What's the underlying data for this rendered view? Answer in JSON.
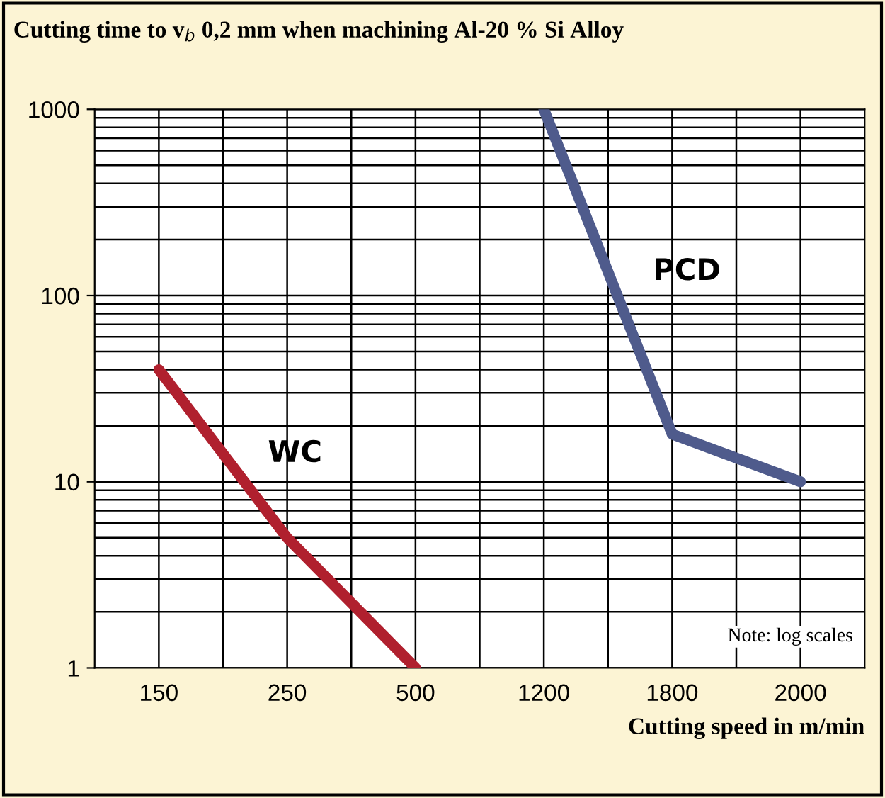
{
  "chart_data": {
    "type": "line",
    "title": "Cutting time to v$_{b}$ 0,2 mm when machining Al-20 % Si Alloy",
    "xlabel": "Cutting speed in m/min",
    "categories": [
      "150",
      "250",
      "500",
      "1200",
      "1800",
      "2000"
    ],
    "series": [
      {
        "name": "WC",
        "color": "#b0202e",
        "values": [
          40,
          5,
          1,
          null,
          null,
          null
        ]
      },
      {
        "name": "PCD",
        "color": "#4f5b8c",
        "values": [
          null,
          null,
          null,
          1000,
          18,
          10
        ]
      }
    ],
    "log": "y",
    "ylim": [
      1,
      1000
    ],
    "yticks": [
      1,
      10,
      100,
      1000
    ],
    "grid": true,
    "legend": false,
    "annotations": [
      "Note: log scales"
    ]
  }
}
